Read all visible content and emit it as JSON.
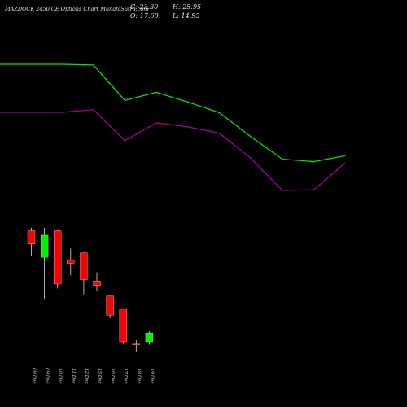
{
  "header": {
    "title": "MAZDOCK 2450  CE Options  Chart MunafaSutra.com",
    "close": "C: 23.30",
    "open": "O: 17.60",
    "high": "H: 25.95",
    "low": "L: 14.95"
  },
  "chart_data": {
    "type": "candlestick",
    "categories": [
      "08 Dec",
      "09 Dec",
      "10 Dec",
      "11 Dec",
      "12 Dec",
      "15 Dec",
      "16 Dec",
      "17 Dec",
      "18 Dec",
      "19 Dec"
    ],
    "candles": [
      {
        "open": 86,
        "high": 88,
        "low": 69,
        "close": 77
      },
      {
        "open": 68,
        "high": 88,
        "low": 40,
        "close": 83
      },
      {
        "open": 86,
        "high": 87,
        "low": 47,
        "close": 50
      },
      {
        "open": 66,
        "high": 74,
        "low": 56,
        "close": 64
      },
      {
        "open": 71,
        "high": 72,
        "low": 43,
        "close": 53
      },
      {
        "open": 52,
        "high": 58,
        "low": 45,
        "close": 49
      },
      {
        "open": 42,
        "high": 42,
        "low": 27,
        "close": 29
      },
      {
        "open": 33,
        "high": 33,
        "low": 10,
        "close": 11
      },
      {
        "open": 10,
        "high": 12,
        "low": 4,
        "close": 9
      },
      {
        "open": 11,
        "high": 18,
        "low": 9,
        "close": 17
      }
    ],
    "series": [
      {
        "color": "#00ee00",
        "values": [
          100,
          99.7,
          85.6,
          88.8,
          84.9,
          80.7,
          71.1,
          62.1,
          61.1,
          63.5
        ]
      },
      {
        "color": "#aa00aa",
        "values": [
          80.8,
          81.9,
          69.5,
          76.6,
          75.0,
          72.5,
          62.5,
          49.6,
          49.9,
          60.7
        ]
      }
    ],
    "series_x_start": "07 Dec",
    "ylim": [
      0,
      100
    ],
    "colors": {
      "up": "#00ee00",
      "down": "#ff0000",
      "wick": "#d8d8d8",
      "background": "#000000"
    }
  }
}
